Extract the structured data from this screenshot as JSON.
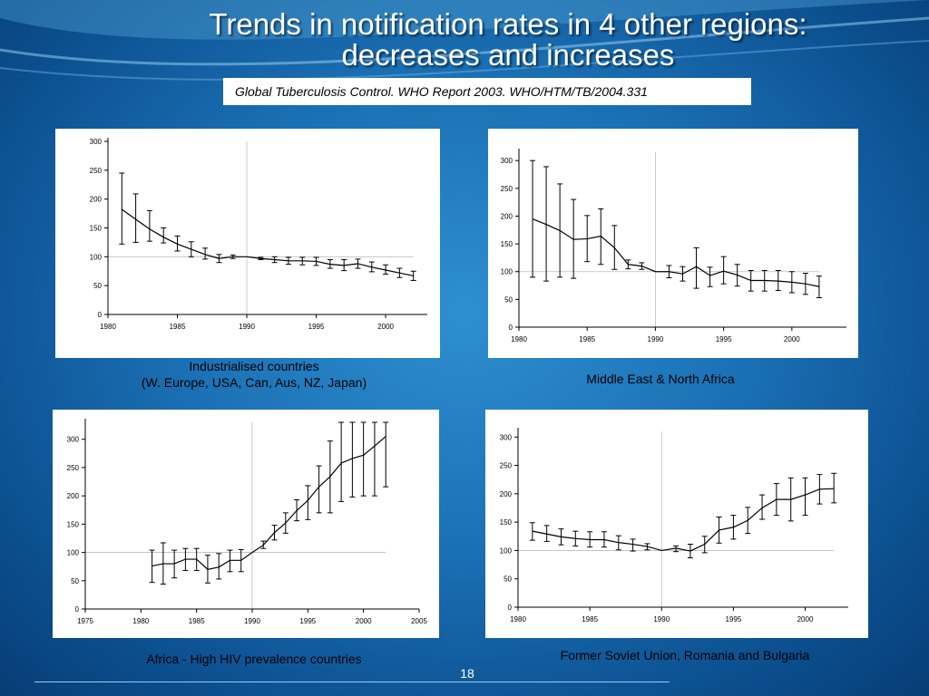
{
  "slide": {
    "title_line1": "Trends in notification rates in 4 other regions:",
    "title_line2": "decreases and increases",
    "source": "Global Tuberculosis Control. WHO Report 2003. WHO/HTM/TB/2004.331",
    "page_number": "18"
  },
  "captions": {
    "industrialised_line1": "Industrialised countries",
    "industrialised_line2": "(W. Europe, USA, Can, Aus, NZ, Japan)",
    "mena": "Middle East & North Africa",
    "africa": "Africa - High HIV prevalence countries",
    "fsu": "Former Soviet Union, Romania and Bulgaria"
  },
  "chart_data": [
    {
      "id": "industrialised",
      "type": "line",
      "xlim": [
        1980,
        2003
      ],
      "ylim": [
        0,
        300
      ],
      "xticks": [
        1980,
        1985,
        1990,
        1995,
        2000
      ],
      "yticks": [
        0,
        50,
        100,
        150,
        200,
        250,
        300
      ],
      "reference_x": 1990,
      "reference_y": 100,
      "x": [
        1981,
        1982,
        1983,
        1984,
        1985,
        1986,
        1987,
        1988,
        1989,
        1990,
        1991,
        1992,
        1993,
        1994,
        1995,
        1996,
        1997,
        1998,
        1999,
        2000,
        2001,
        2002
      ],
      "y": [
        182,
        165,
        148,
        134,
        122,
        113,
        104,
        97,
        100,
        100,
        97,
        95,
        93,
        93,
        92,
        87,
        85,
        88,
        82,
        77,
        72,
        67
      ],
      "err_low": [
        122,
        125,
        127,
        124,
        110,
        100,
        96,
        90,
        97,
        100,
        95,
        90,
        87,
        86,
        85,
        80,
        76,
        80,
        74,
        70,
        64,
        59
      ],
      "err_high": [
        245,
        209,
        180,
        150,
        136,
        126,
        115,
        104,
        103,
        100,
        99,
        100,
        99,
        99,
        99,
        95,
        95,
        96,
        91,
        86,
        80,
        75
      ]
    },
    {
      "id": "mena",
      "type": "line",
      "xlim": [
        1980,
        2004
      ],
      "ylim": [
        0,
        315
      ],
      "xticks": [
        1980,
        1985,
        1990,
        1995,
        2000
      ],
      "yticks": [
        0,
        50,
        100,
        150,
        200,
        250,
        300
      ],
      "reference_x": 1990,
      "reference_y": 100,
      "x": [
        1981,
        1982,
        1983,
        1984,
        1985,
        1986,
        1987,
        1988,
        1989,
        1990,
        1991,
        1992,
        1993,
        1994,
        1995,
        1996,
        1997,
        1998,
        1999,
        2000,
        2001,
        2002
      ],
      "y": [
        195,
        185,
        174,
        158,
        159,
        164,
        143,
        113,
        110,
        100,
        100,
        96,
        109,
        93,
        101,
        94,
        84,
        84,
        83,
        81,
        78,
        73
      ],
      "err_low": [
        90,
        83,
        90,
        88,
        118,
        113,
        104,
        105,
        104,
        100,
        89,
        83,
        70,
        73,
        78,
        74,
        65,
        65,
        66,
        62,
        59,
        53
      ],
      "err_high": [
        300,
        289,
        258,
        230,
        201,
        213,
        183,
        121,
        116,
        100,
        111,
        109,
        143,
        108,
        127,
        113,
        102,
        102,
        102,
        100,
        97,
        92
      ]
    },
    {
      "id": "africa",
      "type": "line",
      "xlim": [
        1975,
        2005
      ],
      "ylim": [
        0,
        330
      ],
      "xticks": [
        1975,
        1980,
        1985,
        1990,
        1995,
        2000,
        2005
      ],
      "yticks": [
        0,
        50,
        100,
        150,
        200,
        250,
        300
      ],
      "reference_x": 1990,
      "reference_y": 100,
      "x": [
        1981,
        1982,
        1983,
        1984,
        1985,
        1986,
        1987,
        1988,
        1989,
        1990,
        1991,
        1992,
        1993,
        1994,
        1995,
        1996,
        1997,
        1998,
        1999,
        2000,
        2001,
        2002
      ],
      "y": [
        76,
        80,
        80,
        88,
        88,
        70,
        74,
        86,
        86,
        100,
        113,
        135,
        152,
        174,
        192,
        216,
        234,
        258,
        266,
        272,
        288,
        305
      ],
      "err_low": [
        47,
        44,
        55,
        68,
        68,
        46,
        53,
        66,
        66,
        100,
        107,
        122,
        134,
        156,
        158,
        170,
        170,
        190,
        198,
        200,
        200,
        216
      ],
      "err_high": [
        104,
        117,
        104,
        107,
        107,
        95,
        98,
        104,
        105,
        100,
        120,
        148,
        170,
        193,
        218,
        253,
        297,
        330,
        330,
        330,
        330,
        330
      ]
    },
    {
      "id": "fsu",
      "type": "line",
      "xlim": [
        1980,
        2003
      ],
      "ylim": [
        0,
        310
      ],
      "xticks": [
        1980,
        1985,
        1990,
        1995,
        2000
      ],
      "yticks": [
        0,
        50,
        100,
        150,
        200,
        250,
        300
      ],
      "reference_x": 1990,
      "reference_y": 100,
      "x": [
        1981,
        1982,
        1983,
        1984,
        1985,
        1986,
        1987,
        1988,
        1989,
        1990,
        1991,
        1992,
        1993,
        1994,
        1995,
        1996,
        1997,
        1998,
        1999,
        2000,
        2001,
        2002
      ],
      "y": [
        134,
        129,
        124,
        121,
        119,
        119,
        114,
        111,
        107,
        100,
        104,
        99,
        111,
        136,
        141,
        153,
        175,
        190,
        190,
        198,
        208,
        209
      ],
      "err_low": [
        118,
        116,
        110,
        108,
        106,
        106,
        101,
        99,
        101,
        100,
        98,
        87,
        96,
        113,
        120,
        130,
        155,
        162,
        152,
        162,
        182,
        184
      ],
      "err_high": [
        149,
        144,
        138,
        134,
        133,
        133,
        126,
        120,
        112,
        100,
        108,
        111,
        125,
        159,
        162,
        176,
        198,
        218,
        228,
        228,
        234,
        236
      ]
    }
  ]
}
